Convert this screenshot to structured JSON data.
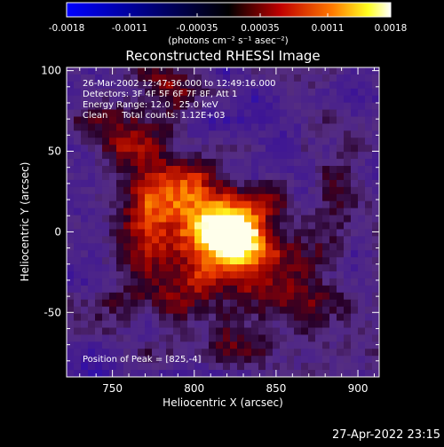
{
  "chart_data": {
    "type": "heatmap",
    "title": "Reconstructed RHESSI Image",
    "xlabel": "Heliocentric X (arcsec)",
    "ylabel": "Heliocentric Y (arcsec)",
    "xlim": [
      722,
      913
    ],
    "ylim": [
      -90,
      102
    ],
    "x_ticks": [
      750,
      800,
      850,
      900
    ],
    "y_ticks": [
      -50,
      0,
      50,
      100
    ],
    "colorbar": {
      "range": [
        -0.0018,
        0.0018
      ],
      "tick_values": [
        -0.0018,
        -0.0011,
        -0.00035,
        0.00035,
        0.0011,
        0.0018
      ],
      "tick_labels": [
        "-0.0018",
        "-0.0011",
        "-0.00035",
        "0.00035",
        "0.0011",
        "0.0018"
      ],
      "unit_label": "(photons cm⁻² s⁻¹ asec⁻²)"
    },
    "annotations": [
      "26-Mar-2002 12:47:36.000 to 12:49:16.000",
      "Detectors: 3F 4F 5F 6F 7F 8F, Att 1",
      "Energy Range: 12.0 - 25.0 keV",
      "Clean     Total counts: 1.12E+03"
    ],
    "peak_label": "Position of Peak = [825,-4]",
    "peak": {
      "x": 825,
      "y": -4
    },
    "source_blobs": [
      {
        "x": 825,
        "y": -4,
        "sx": 14,
        "sy": 12,
        "amp": 1.0
      },
      {
        "x": 805,
        "y": 5,
        "sx": 18,
        "sy": 16,
        "amp": 0.65
      },
      {
        "x": 815,
        "y": -35,
        "sx": 35,
        "sy": 18,
        "amp": 0.45
      },
      {
        "x": 790,
        "y": 30,
        "sx": 14,
        "sy": 12,
        "amp": 0.4
      },
      {
        "x": 770,
        "y": 15,
        "sx": 18,
        "sy": 22,
        "amp": 0.4
      },
      {
        "x": 760,
        "y": 65,
        "sx": 18,
        "sy": 18,
        "amp": 0.35
      },
      {
        "x": 785,
        "y": 90,
        "sx": 10,
        "sy": 8,
        "amp": 0.3
      },
      {
        "x": 845,
        "y": 20,
        "sx": 14,
        "sy": 14,
        "amp": 0.3
      },
      {
        "x": 890,
        "y": 30,
        "sx": 14,
        "sy": 20,
        "amp": 0.3
      },
      {
        "x": 870,
        "y": -30,
        "sx": 18,
        "sy": 20,
        "amp": 0.25
      },
      {
        "x": 900,
        "y": -70,
        "sx": 14,
        "sy": 14,
        "amp": 0.2
      },
      {
        "x": 830,
        "y": -75,
        "sx": 22,
        "sy": 10,
        "amp": 0.2
      }
    ],
    "background_level": -0.35
  },
  "footer": {
    "timestamp": "27-Apr-2022 23:15"
  }
}
